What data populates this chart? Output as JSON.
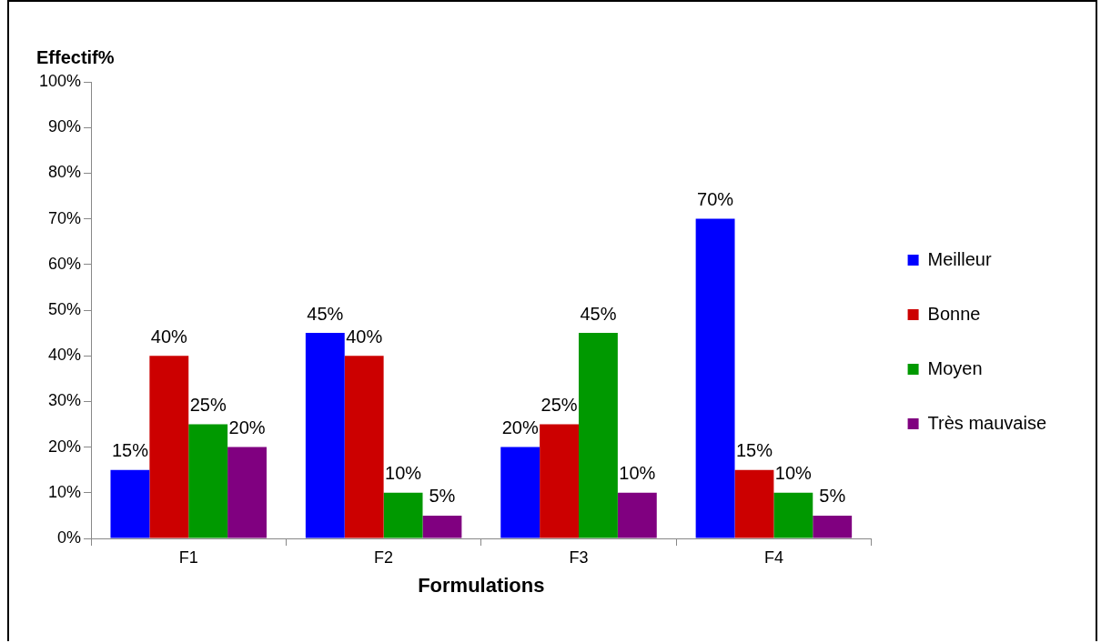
{
  "chart_data": {
    "type": "bar",
    "ylabel": "Effectif%",
    "xlabel": "Formulations",
    "categories": [
      "F1",
      "F2",
      "F3",
      "F4"
    ],
    "series": [
      {
        "name": "Meilleur",
        "color": "#0000ff",
        "values": [
          15,
          45,
          20,
          70
        ],
        "value_labels": [
          "15%",
          "45%",
          "20%",
          "70%"
        ]
      },
      {
        "name": "Bonne",
        "color": "#cc0000",
        "values": [
          40,
          40,
          25,
          15
        ],
        "value_labels": [
          "40%",
          "40%",
          "25%",
          "15%"
        ]
      },
      {
        "name": "Moyen",
        "color": "#009900",
        "values": [
          25,
          10,
          45,
          10
        ],
        "value_labels": [
          "25%",
          "10%",
          "45%",
          "10%"
        ]
      },
      {
        "name": "Très mauvaise",
        "color": "#800080",
        "values": [
          20,
          5,
          10,
          5
        ],
        "value_labels": [
          "20%",
          "5%",
          "10%",
          "5%"
        ]
      }
    ],
    "ylim": [
      0,
      100
    ],
    "yticks": [
      {
        "value": 0,
        "label": "0%"
      },
      {
        "value": 10,
        "label": "10%"
      },
      {
        "value": 20,
        "label": "20%"
      },
      {
        "value": 30,
        "label": "30%"
      },
      {
        "value": 40,
        "label": "40%"
      },
      {
        "value": 50,
        "label": "50%"
      },
      {
        "value": 60,
        "label": "60%"
      },
      {
        "value": 70,
        "label": "70%"
      },
      {
        "value": 80,
        "label": "80%"
      },
      {
        "value": 90,
        "label": "90%"
      },
      {
        "value": 100,
        "label": "100%"
      }
    ],
    "grid": false,
    "legend": "right"
  }
}
